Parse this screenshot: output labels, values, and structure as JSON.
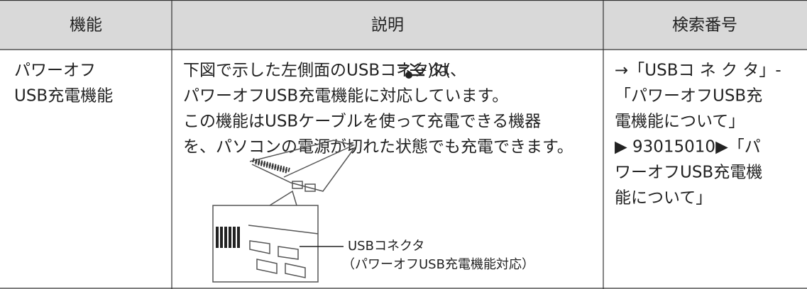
{
  "table": {
    "header": [
      "機能",
      "説明",
      "検索番号"
    ],
    "rows": [
      {
        "function": [
          "パワーオフ",
          "USB充電機能"
        ],
        "description": {
          "line1_before": "下図で示した左側面のUSBコネクタ(",
          "line1_after": ")は、",
          "lines": [
            "パワーオフUSB充電機能に対応しています。",
            "この機能はUSBケーブルを使って充電できる機器",
            "を、パソコンの電源が切れた状態でも充電できます。"
          ],
          "figure_callout": [
            "USBコネクタ",
            "（パワーオフUSB充電機能対応）"
          ]
        },
        "search": [
          "→「USBコ ネ ク タ」-",
          "「パワーオフUSB充",
          "電機能について」",
          "▶ 93015010▶「パ",
          "ワーオフUSB充電機",
          "能について」"
        ]
      }
    ]
  }
}
